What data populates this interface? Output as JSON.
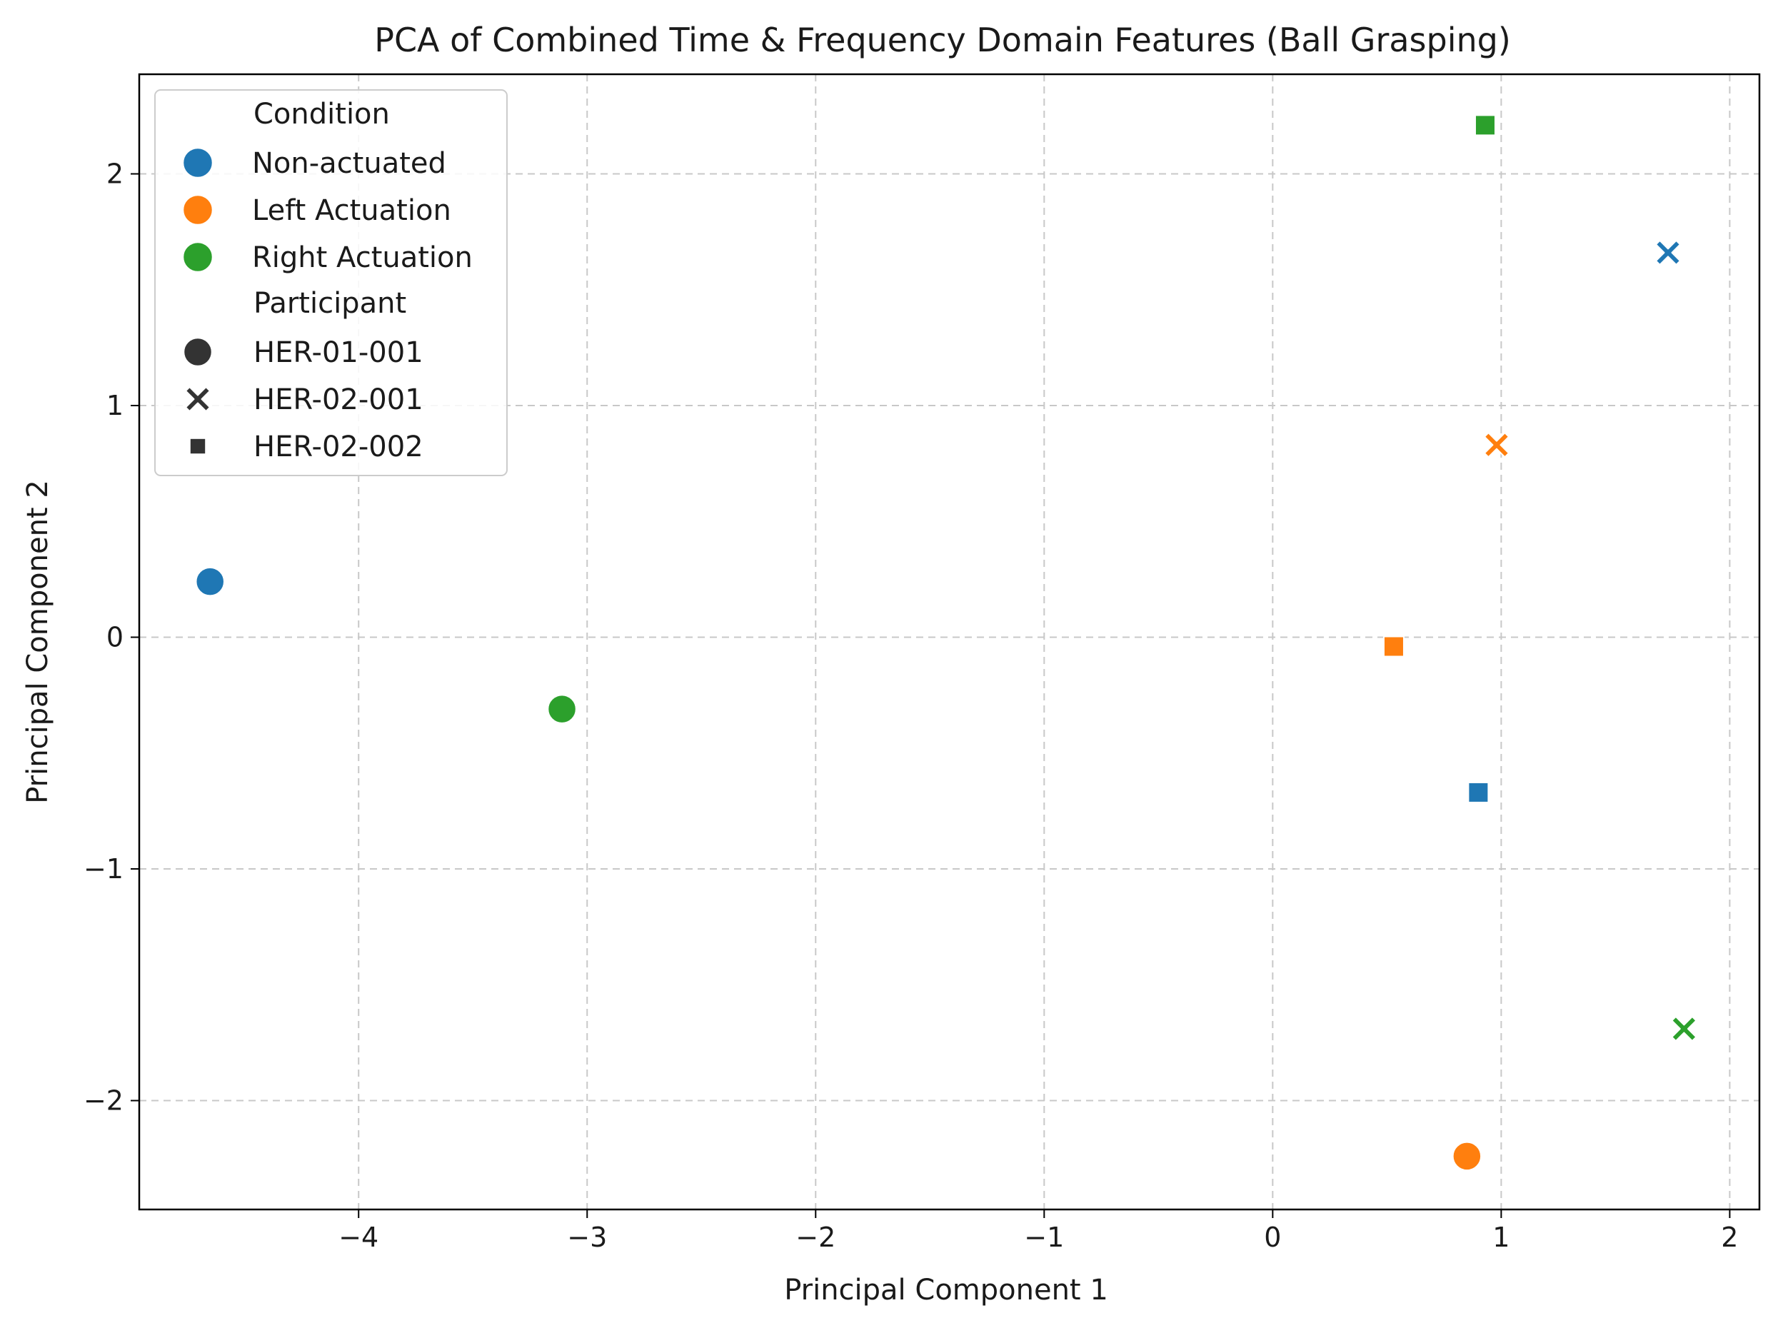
{
  "chart_data": {
    "type": "scatter",
    "title": "PCA of Combined Time & Frequency Domain Features (Ball Grasping)",
    "xlabel": "Principal Component 1",
    "ylabel": "Principal Component 2",
    "xlim": [
      -4.96,
      2.13
    ],
    "ylim": [
      -2.47,
      2.43
    ],
    "xticks": [
      -4,
      -3,
      -2,
      -1,
      0,
      1,
      2
    ],
    "yticks": [
      -2,
      -1,
      0,
      1,
      2
    ],
    "xtick_labels": [
      "−4",
      "−3",
      "−2",
      "−1",
      "0",
      "1",
      "2"
    ],
    "ytick_labels": [
      "−2",
      "−1",
      "0",
      "1",
      "2"
    ],
    "grid": true,
    "legend": {
      "position": "top-left",
      "hue_title": "Condition",
      "hue_items": [
        {
          "label": "Non-actuated",
          "color": "#1f77b4"
        },
        {
          "label": "Left Actuation",
          "color": "#ff7f0e"
        },
        {
          "label": "Right Actuation",
          "color": "#2ca02c"
        }
      ],
      "style_title": "Participant",
      "style_items": [
        {
          "label": "HER-01-001",
          "marker": "circle"
        },
        {
          "label": "HER-02-001",
          "marker": "x"
        },
        {
          "label": "HER-02-002",
          "marker": "square"
        }
      ]
    },
    "series": [
      {
        "condition": "Non-actuated",
        "participant": "HER-01-001",
        "marker": "circle",
        "color": "#1f77b4",
        "x": -4.65,
        "y": 0.24
      },
      {
        "condition": "Non-actuated",
        "participant": "HER-02-001",
        "marker": "x",
        "color": "#1f77b4",
        "x": 1.73,
        "y": 1.66
      },
      {
        "condition": "Non-actuated",
        "participant": "HER-02-002",
        "marker": "square",
        "color": "#1f77b4",
        "x": 0.9,
        "y": -0.67
      },
      {
        "condition": "Left Actuation",
        "participant": "HER-01-001",
        "marker": "circle",
        "color": "#ff7f0e",
        "x": 0.85,
        "y": -2.24
      },
      {
        "condition": "Left Actuation",
        "participant": "HER-02-001",
        "marker": "x",
        "color": "#ff7f0e",
        "x": 0.98,
        "y": 0.83
      },
      {
        "condition": "Left Actuation",
        "participant": "HER-02-002",
        "marker": "square",
        "color": "#ff7f0e",
        "x": 0.53,
        "y": -0.04
      },
      {
        "condition": "Right Actuation",
        "participant": "HER-01-001",
        "marker": "circle",
        "color": "#2ca02c",
        "x": -3.11,
        "y": -0.31
      },
      {
        "condition": "Right Actuation",
        "participant": "HER-02-001",
        "marker": "x",
        "color": "#2ca02c",
        "x": 1.8,
        "y": -1.69
      },
      {
        "condition": "Right Actuation",
        "participant": "HER-02-002",
        "marker": "square",
        "color": "#2ca02c",
        "x": 0.93,
        "y": 2.21
      }
    ]
  }
}
